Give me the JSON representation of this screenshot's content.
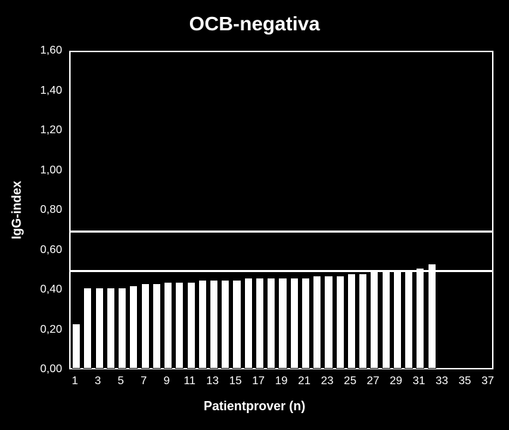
{
  "chart": {
    "type": "bar",
    "title": "OCB-negativa",
    "title_fontsize": 28,
    "xlabel": "Patientprover (n)",
    "ylabel": "IgG-index",
    "label_fontsize": 18,
    "tick_fontsize": 16,
    "background_color": "#000000",
    "bar_color": "#ffffff",
    "axis_color": "#ffffff",
    "text_color": "#ffffff",
    "ref_line_color": "#ffffff",
    "ref_line_width": 3,
    "border_width": 2,
    "ylim": [
      0.0,
      1.6
    ],
    "ytick_step": 0.2,
    "yticks": [
      "0,00",
      "0,20",
      "0,40",
      "0,60",
      "0,80",
      "1,00",
      "1,20",
      "1,40",
      "1,60"
    ],
    "xticks": [
      1,
      3,
      5,
      7,
      9,
      11,
      13,
      15,
      17,
      19,
      21,
      23,
      25,
      27,
      29,
      31,
      33,
      35,
      37
    ],
    "reference_lines": [
      0.5,
      0.7
    ],
    "n_categories": 37,
    "bar_width_ratio": 0.62,
    "values": [
      0.22,
      0.4,
      0.4,
      0.4,
      0.4,
      0.41,
      0.42,
      0.42,
      0.43,
      0.43,
      0.43,
      0.44,
      0.44,
      0.44,
      0.44,
      0.45,
      0.45,
      0.45,
      0.45,
      0.45,
      0.45,
      0.46,
      0.46,
      0.46,
      0.47,
      0.47,
      0.48,
      0.48,
      0.49,
      0.49,
      0.5,
      0.52,
      null,
      null,
      null,
      null,
      null
    ]
  }
}
